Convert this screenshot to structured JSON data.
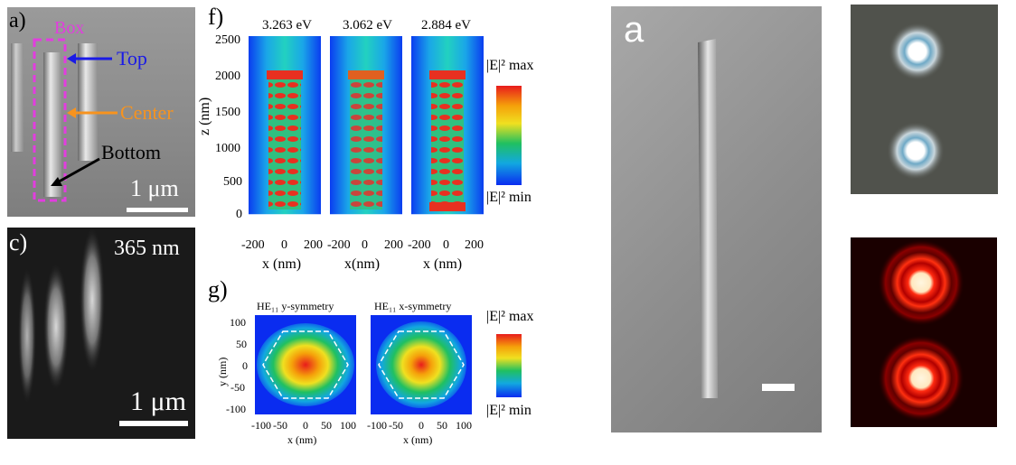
{
  "panel_a": {
    "label": "a)",
    "box_label": "Box",
    "top_label": "Top",
    "center_label": "Center",
    "bottom_label": "Bottom",
    "scale_label": "1 μm",
    "colors": {
      "box": "#e23ddf",
      "top": "#1a1ae6",
      "center": "#f7931e",
      "bottom": "#000000"
    }
  },
  "panel_c": {
    "label": "c)",
    "wavelength": "365 nm",
    "scale_label": "1 μm"
  },
  "panel_f": {
    "label": "f)",
    "energies": [
      "3.263 eV",
      "3.062 eV",
      "2.884 eV"
    ],
    "y_axis_label": "z (nm)",
    "y_ticks": [
      "2500",
      "2000",
      "1500",
      "1000",
      "500",
      "0"
    ],
    "x_tick_row": [
      "-200",
      "0",
      "200",
      "-200",
      "0",
      "200",
      "-200",
      "0",
      "200"
    ],
    "x_axis_labels": [
      "x (nm)",
      "x(nm)",
      "x (nm)"
    ],
    "colorbar_max": "|E|² max",
    "colorbar_min": "|E|² min"
  },
  "panel_g": {
    "label": "g)",
    "plot_titles": [
      "HE₁₁ y-symmetry",
      "HE₁₁ x-symmetry"
    ],
    "y_axis_label": "y (nm)",
    "y_ticks": [
      "100",
      "50",
      "0",
      "-50",
      "-100"
    ],
    "x_ticks": [
      "-100",
      "-50",
      "0",
      "50",
      "100"
    ],
    "x_axis_label": "x (nm)",
    "colorbar_max": "|E|² max",
    "colorbar_min": "|E|² min"
  },
  "panel_sem_right": {
    "label": "a"
  }
}
